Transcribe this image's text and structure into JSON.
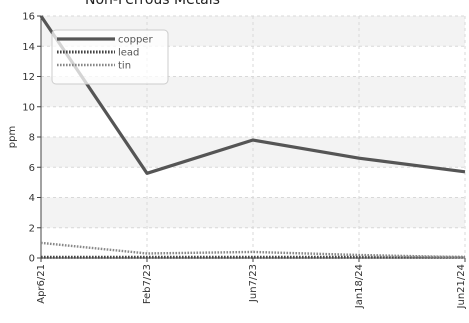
{
  "chart_data": {
    "type": "line",
    "title": "Non-Ferrous Metals",
    "xlabel": "",
    "ylabel": "ppm",
    "categories": [
      "Apr6/21",
      "Feb7/23",
      "Jun7/23",
      "Jan18/24",
      "Jun21/24"
    ],
    "ylim": [
      0,
      16
    ],
    "yticks": [
      0,
      2,
      4,
      6,
      8,
      10,
      12,
      14,
      16
    ],
    "grid": true,
    "legend_position": "top-left",
    "series": [
      {
        "name": "copper",
        "values": [
          16,
          5.6,
          7.8,
          6.6,
          5.7
        ],
        "color": "#555555",
        "style": "solid"
      },
      {
        "name": "lead",
        "values": [
          0.05,
          0.05,
          0.05,
          0.05,
          0.05
        ],
        "color": "#444444",
        "style": "dotted"
      },
      {
        "name": "tin",
        "values": [
          1.0,
          0.3,
          0.4,
          0.2,
          0.05
        ],
        "color": "#888888",
        "style": "dashed"
      }
    ]
  }
}
